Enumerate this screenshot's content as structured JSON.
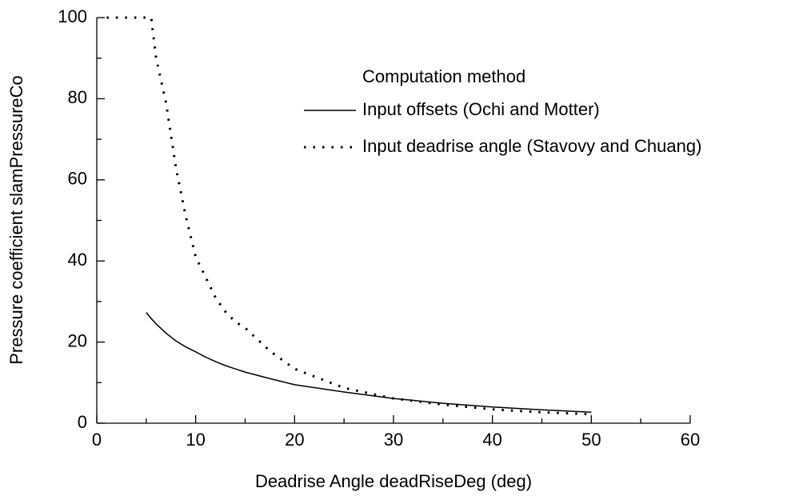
{
  "chart_data": {
    "type": "line",
    "xlabel": "Deadrise Angle deadRiseDeg (deg)",
    "ylabel": "Pressure coefficient slamPressureCo",
    "legend_title": "Computation method",
    "x": [
      1,
      2,
      3,
      4,
      5,
      5.5,
      6,
      7,
      8,
      9,
      10,
      11,
      12,
      13,
      14,
      15,
      17.5,
      20,
      25,
      30,
      35,
      40,
      45,
      50
    ],
    "series": [
      {
        "name": "Input offsets (Ochi and Motter)",
        "color": "#000000",
        "style": "solid",
        "values": [
          null,
          null,
          null,
          null,
          27.3,
          25.8,
          24.5,
          22.2,
          20.3,
          18.8,
          17.6,
          16.3,
          15.2,
          14.2,
          13.4,
          12.6,
          11.0,
          9.5,
          7.7,
          6.1,
          4.9,
          4.0,
          3.3,
          2.7
        ]
      },
      {
        "name": "Input deadrise angle (Stavovy and Chuang)",
        "color": "#000000",
        "style": "dotted",
        "values": [
          100,
          100,
          100,
          100,
          100,
          100,
          90,
          79,
          63,
          51,
          41,
          36,
          31,
          27.5,
          25,
          23.5,
          17.8,
          13.4,
          8.7,
          6.1,
          4.6,
          3.4,
          2.7,
          2.2
        ]
      }
    ],
    "xlim": [
      0,
      60
    ],
    "xticks": [
      0,
      10,
      20,
      30,
      40,
      50,
      60
    ],
    "xminorticks": [
      5,
      15,
      25,
      35,
      45,
      55
    ],
    "ylim": [
      0,
      100
    ],
    "yticks": [
      0,
      20,
      40,
      60,
      80,
      100
    ],
    "yminorticks": [
      10,
      30,
      50,
      70,
      90
    ],
    "legend": "upper right",
    "grid": false
  }
}
